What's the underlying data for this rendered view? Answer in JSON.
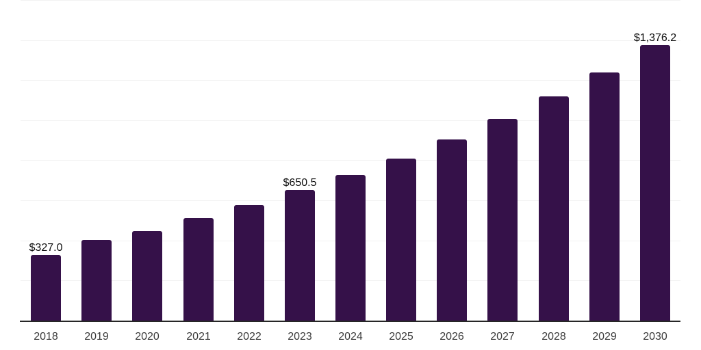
{
  "chart_data": {
    "type": "bar",
    "title": "",
    "xlabel": "",
    "ylabel": "",
    "categories": [
      "2018",
      "2019",
      "2020",
      "2021",
      "2022",
      "2023",
      "2024",
      "2025",
      "2026",
      "2027",
      "2028",
      "2029",
      "2030"
    ],
    "values": [
      327.0,
      402.0,
      448.3,
      510.9,
      575.7,
      650.5,
      725.6,
      807.3,
      904.4,
      1004.9,
      1117.3,
      1239.9,
      1376.2
    ],
    "value_labels": [
      "$327.0",
      null,
      null,
      null,
      null,
      "$650.5",
      null,
      null,
      null,
      null,
      null,
      null,
      "$1,376.2"
    ],
    "labeled_points": [
      {
        "category": "2018",
        "label": "$327.0"
      },
      {
        "category": "2023",
        "label": "$650.5"
      },
      {
        "category": "2030",
        "label": "$1,376.2"
      }
    ],
    "ylim": [
      0,
      1600
    ],
    "gridline_step": 200,
    "grid": "horizontal",
    "y_tick_labels_visible": false,
    "legend_position": "none",
    "colors": {
      "bar": "#351149",
      "gridline": "#f2f2f2",
      "axis_line": "#262626",
      "tick_label": "#3a3a3a",
      "value_label": "#0d0d0d",
      "background": "#ffffff"
    }
  }
}
